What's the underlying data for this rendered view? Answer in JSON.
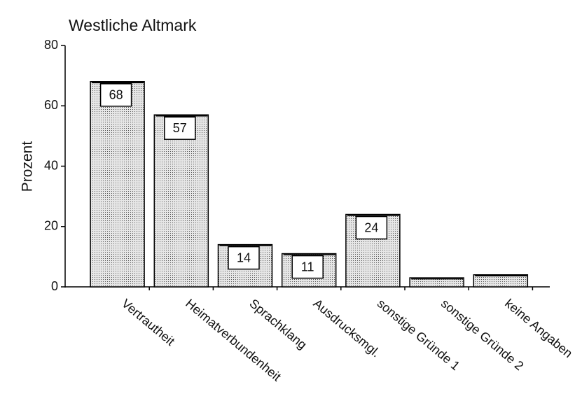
{
  "chart_data": {
    "type": "bar",
    "title": "Westliche Altmark",
    "ylabel": "Prozent",
    "categories": [
      "Vertrautheit",
      "Heimatverbundenheit",
      "Sprachklang",
      "Ausdrucksmgl.",
      "sonstige Gründe 1",
      "sonstige Gründe 2",
      "keine Angaben"
    ],
    "values": [
      68,
      57,
      14,
      11,
      24,
      3,
      4
    ],
    "value_labels": [
      "68",
      "57",
      "14",
      "11",
      "24",
      null,
      null
    ],
    "color": "#c8c8c8",
    "ylim": [
      0,
      80
    ],
    "yticks": [
      0,
      20,
      40,
      60,
      80
    ],
    "grid": false
  }
}
